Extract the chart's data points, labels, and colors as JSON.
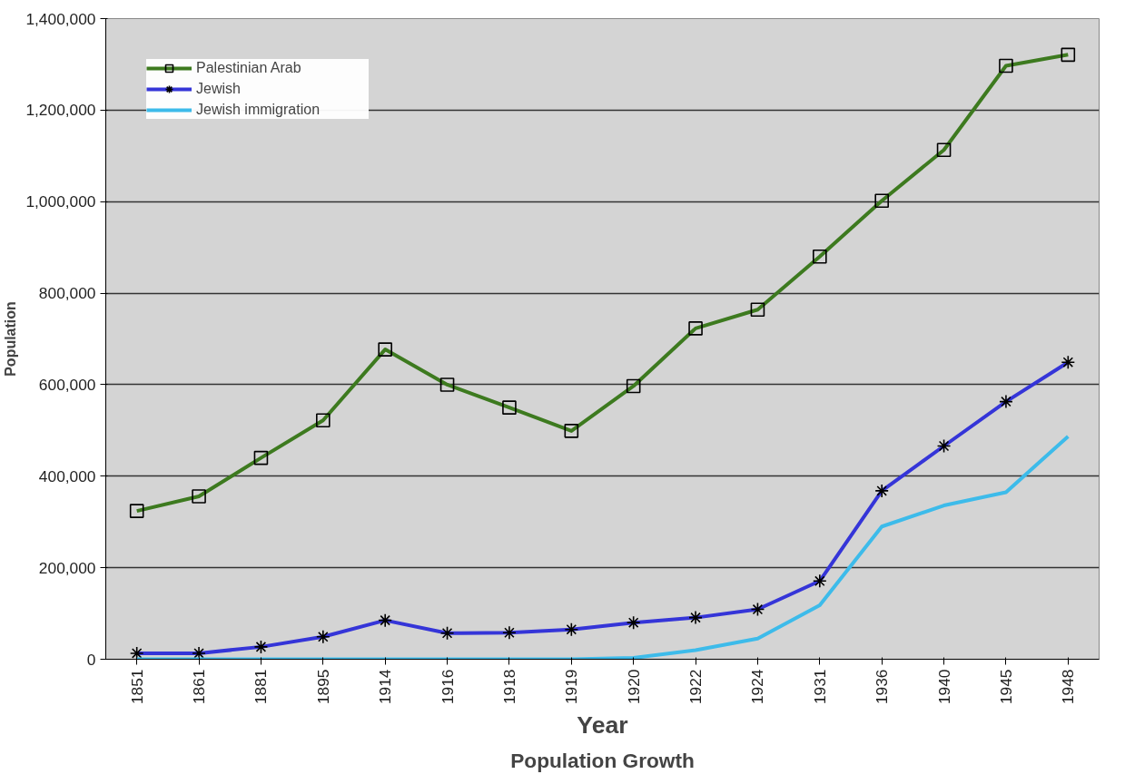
{
  "chart_data": {
    "type": "line",
    "title": "Population Growth",
    "xlabel": "Year",
    "ylabel": "Population",
    "categories": [
      "1851",
      "1861",
      "1881",
      "1895",
      "1914",
      "1916",
      "1918",
      "1919",
      "1920",
      "1922",
      "1924",
      "1931",
      "1936",
      "1940",
      "1945",
      "1948"
    ],
    "series": [
      {
        "name": "Palestinian Arab",
        "color": "#3d7a1f",
        "marker": "square",
        "values": [
          324000,
          356000,
          440000,
          522000,
          677000,
          600000,
          550000,
          499000,
          597000,
          723000,
          764000,
          880000,
          1002000,
          1113000,
          1297000,
          1321000
        ]
      },
      {
        "name": "Jewish",
        "color": "#3535d8",
        "marker": "cross",
        "values": [
          13000,
          13000,
          27000,
          49000,
          85000,
          57000,
          58000,
          65000,
          80000,
          91000,
          109000,
          171000,
          368000,
          466000,
          563000,
          649000
        ]
      },
      {
        "name": "Jewish immigration",
        "color": "#3dbbea",
        "marker": "none",
        "values": [
          0,
          0,
          0,
          0,
          0,
          0,
          0,
          0,
          3000,
          20000,
          45000,
          118000,
          290000,
          336000,
          365000,
          487000
        ]
      }
    ],
    "ylim": [
      0,
      1400000
    ],
    "yticks": [
      {
        "value": 0,
        "label": "0"
      },
      {
        "value": 200000,
        "label": "200,000"
      },
      {
        "value": 400000,
        "label": "400,000"
      },
      {
        "value": 600000,
        "label": "600,000"
      },
      {
        "value": 800000,
        "label": "800,000"
      },
      {
        "value": 1000000,
        "label": "1,000,000"
      },
      {
        "value": 1200000,
        "label": "1,200,000"
      },
      {
        "value": 1400000,
        "label": "1,400,000"
      }
    ],
    "grid": "y",
    "legend": "top left",
    "line_style": "solid"
  }
}
